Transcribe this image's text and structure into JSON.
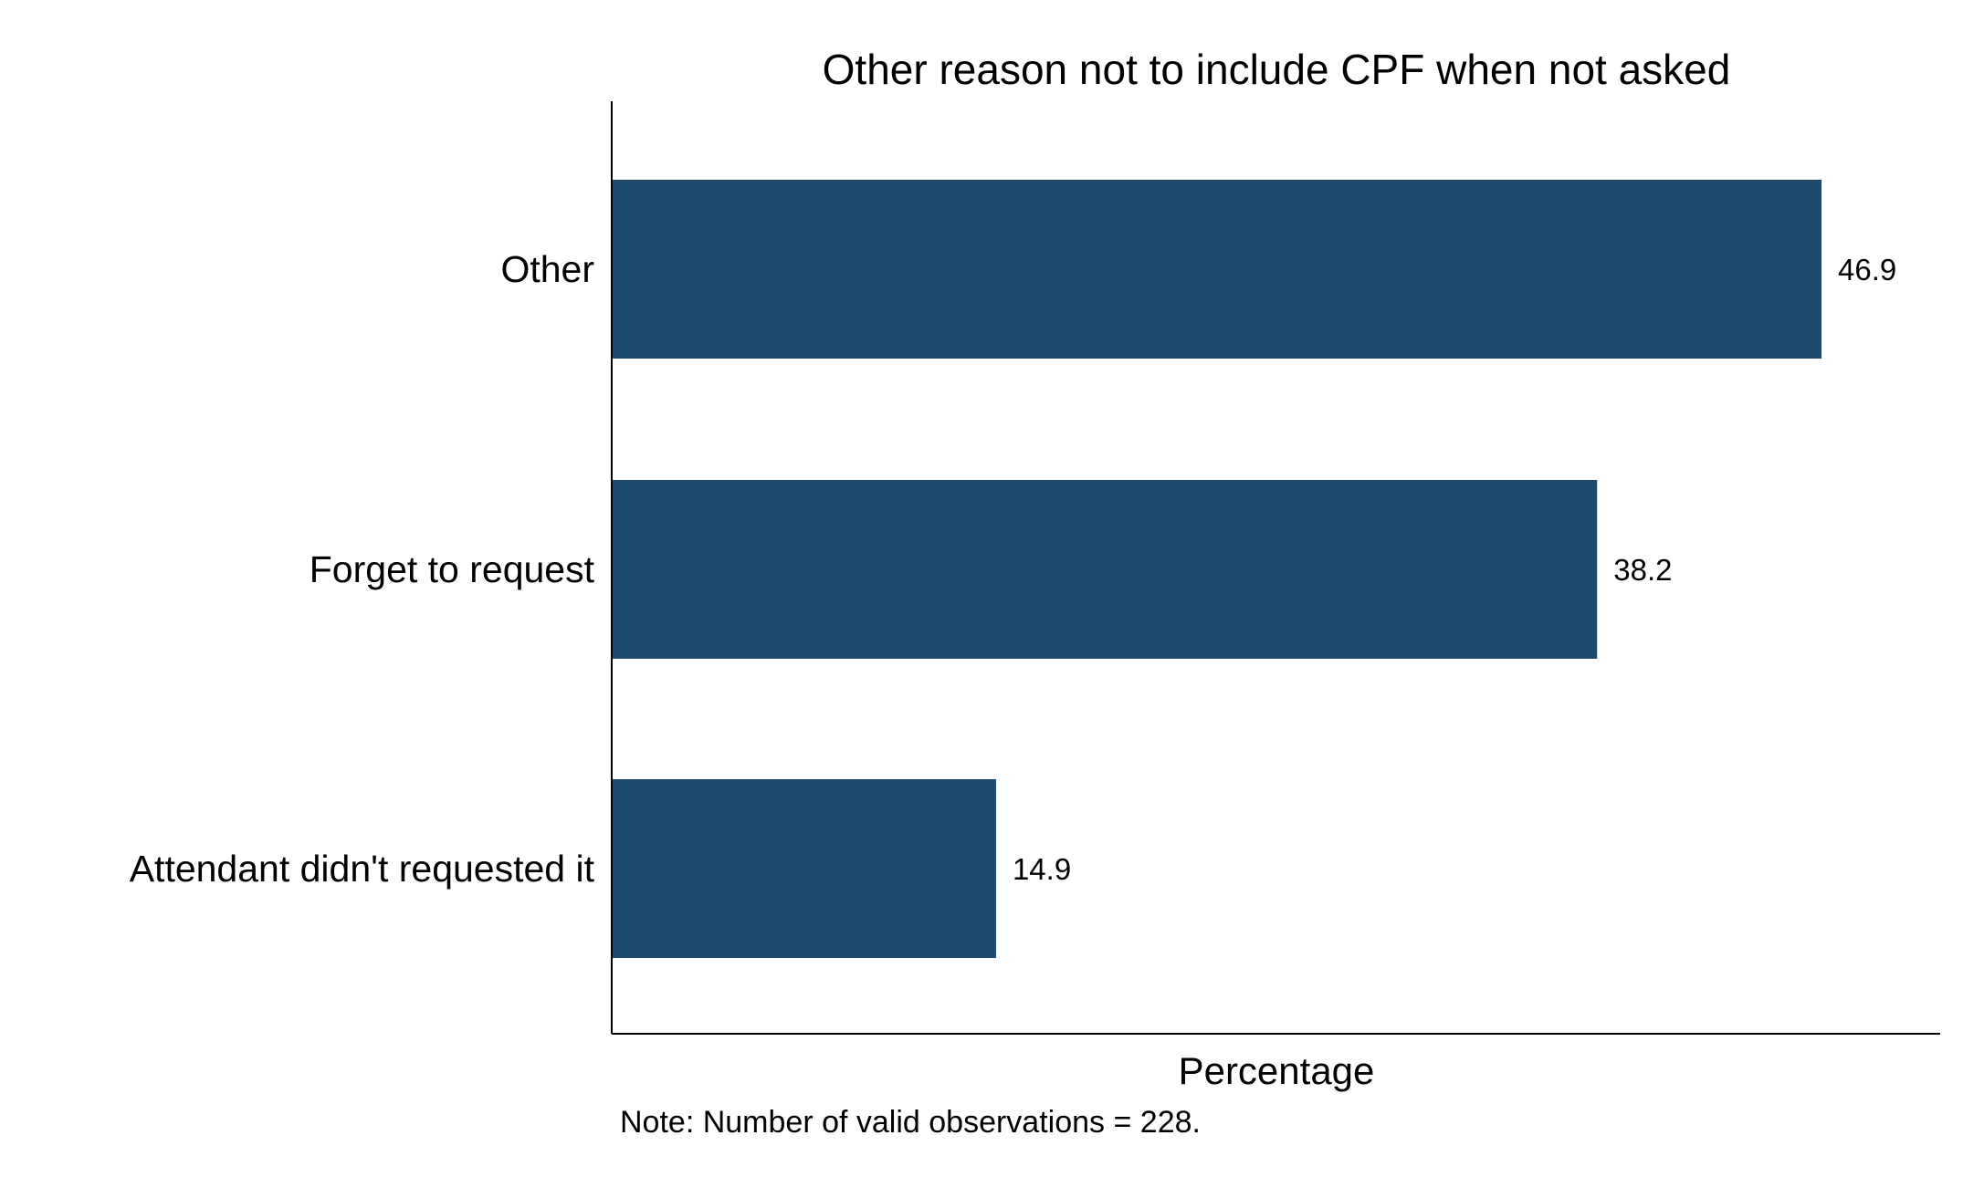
{
  "chart_data": {
    "type": "bar",
    "orientation": "horizontal",
    "title": "Other reason not to include CPF when not asked",
    "categories": [
      "Other",
      "Forget to request",
      "Attendant didn't requested it"
    ],
    "values": [
      46.9,
      38.2,
      14.9
    ],
    "value_labels": [
      "46.9",
      "38.2",
      "14.9"
    ],
    "xlabel": "Percentage",
    "ylabel": "",
    "xlim": [
      0,
      51.5
    ],
    "grid": false,
    "legend": "none",
    "note": "Note: Number of valid observations = 228.",
    "colors": {
      "bar": "#1e4a6f",
      "axis": "#000000",
      "text": "#000000",
      "background": "#ffffff"
    }
  }
}
